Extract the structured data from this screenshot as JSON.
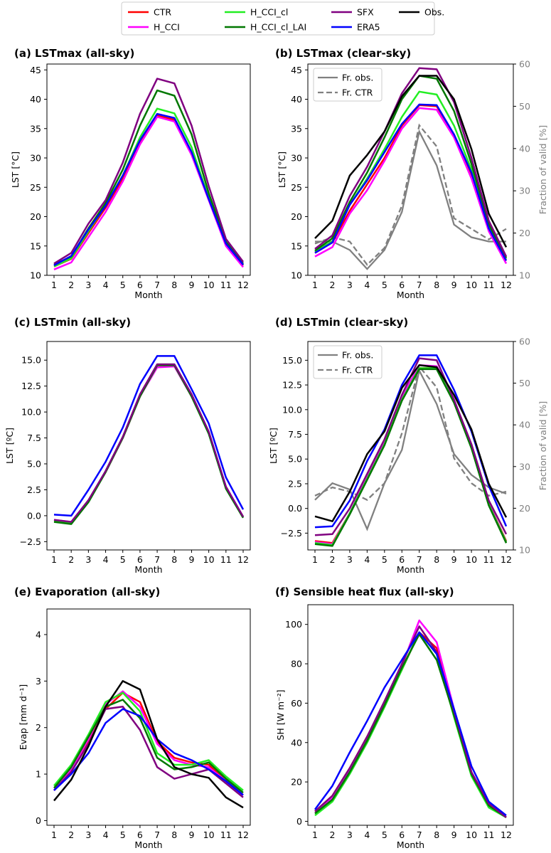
{
  "legend": {
    "entries": [
      {
        "label": "CTR",
        "color": "#ff0000"
      },
      {
        "label": "H_CCI",
        "color": "#ff00ff"
      },
      {
        "label": "H_CCI_cl",
        "color": "#22ee22"
      },
      {
        "label": "H_CCI_cl_LAI",
        "color": "#007700"
      },
      {
        "label": "SFX",
        "color": "#800080"
      },
      {
        "label": "ERA5",
        "color": "#0000ff"
      },
      {
        "label": "Obs.",
        "color": "#000000"
      }
    ]
  },
  "chart_data": [
    {
      "id": "a",
      "type": "line",
      "title": "(a) LSTmax (all-sky)",
      "xlabel": "Month",
      "ylabel": "LST [°C]",
      "categories": [
        "1",
        "2",
        "3",
        "4",
        "5",
        "6",
        "7",
        "8",
        "9",
        "10",
        "11",
        "12"
      ],
      "ylim": [
        10,
        46
      ],
      "yticks": [
        "10",
        "15",
        "20",
        "25",
        "30",
        "35",
        "40",
        "45"
      ],
      "series": [
        {
          "name": "CTR",
          "color": "#ff0000",
          "values": [
            11.5,
            12.8,
            17.2,
            21.5,
            26.5,
            32.5,
            37.2,
            36.5,
            31.0,
            23.0,
            15.3,
            11.7
          ]
        },
        {
          "name": "H_CCI",
          "color": "#ff00ff",
          "values": [
            11.0,
            12.2,
            16.5,
            20.8,
            26.0,
            32.3,
            37.0,
            36.2,
            30.5,
            22.8,
            15.0,
            11.4
          ]
        },
        {
          "name": "H_CCI_cl",
          "color": "#22ee22",
          "values": [
            11.5,
            12.9,
            17.5,
            21.9,
            27.0,
            33.5,
            38.4,
            37.6,
            31.8,
            23.2,
            15.5,
            11.8
          ]
        },
        {
          "name": "H_CCI_cl_LAI",
          "color": "#007700",
          "values": [
            11.8,
            13.2,
            18.0,
            22.3,
            28.0,
            35.5,
            41.5,
            40.6,
            34.0,
            24.0,
            15.7,
            12.0
          ]
        },
        {
          "name": "SFX",
          "color": "#800080",
          "values": [
            12.0,
            13.8,
            18.8,
            22.8,
            29.2,
            37.5,
            43.5,
            42.7,
            35.5,
            25.2,
            16.2,
            12.3
          ]
        },
        {
          "name": "ERA5",
          "color": "#0000ff",
          "values": [
            11.7,
            13.3,
            17.8,
            21.8,
            27.0,
            33.0,
            37.5,
            36.8,
            31.0,
            23.0,
            15.4,
            11.8
          ]
        }
      ]
    },
    {
      "id": "b",
      "type": "line",
      "title": "(b) LSTmax (clear-sky)",
      "xlabel": "Month",
      "ylabel": "LST [°C]",
      "right_ylabel": "Fraction of valid [%]",
      "categories": [
        "1",
        "2",
        "3",
        "4",
        "5",
        "6",
        "7",
        "8",
        "9",
        "10",
        "11",
        "12"
      ],
      "ylim": [
        10,
        46
      ],
      "yticks": [
        "10",
        "15",
        "20",
        "25",
        "30",
        "35",
        "40",
        "45"
      ],
      "right_ylim": [
        10,
        60
      ],
      "right_yticks": [
        "10",
        "20",
        "30",
        "40",
        "50",
        "60"
      ],
      "inner_legend": [
        "Fr. obs.",
        "Fr. CTR"
      ],
      "series": [
        {
          "name": "CTR",
          "color": "#ff0000",
          "values": [
            13.8,
            15.6,
            21.0,
            25.5,
            30.0,
            35.5,
            39.0,
            38.8,
            34.0,
            27.0,
            18.0,
            12.5
          ]
        },
        {
          "name": "H_CCI",
          "color": "#ff00ff",
          "values": [
            13.2,
            14.8,
            20.5,
            24.5,
            29.5,
            35.0,
            38.5,
            38.2,
            33.5,
            26.5,
            17.5,
            12.0
          ]
        },
        {
          "name": "H_CCI_cl",
          "color": "#22ee22",
          "values": [
            14.0,
            15.8,
            22.0,
            26.5,
            31.5,
            37.0,
            41.3,
            40.8,
            35.5,
            28.0,
            18.2,
            12.8
          ]
        },
        {
          "name": "H_CCI_cl_LAI",
          "color": "#007700",
          "values": [
            14.2,
            16.3,
            22.5,
            27.5,
            33.5,
            40.0,
            44.0,
            43.5,
            38.0,
            29.0,
            18.7,
            13.0
          ]
        },
        {
          "name": "SFX",
          "color": "#800080",
          "values": [
            14.5,
            16.8,
            23.5,
            28.5,
            34.5,
            41.0,
            45.3,
            45.1,
            39.5,
            30.0,
            19.3,
            13.2
          ]
        },
        {
          "name": "ERA5",
          "color": "#0000ff",
          "values": [
            13.8,
            15.6,
            22.0,
            26.2,
            31.0,
            35.8,
            39.1,
            39.0,
            34.0,
            27.5,
            18.0,
            12.5
          ]
        },
        {
          "name": "Obs.",
          "color": "#000000",
          "values": [
            16.3,
            19.3,
            27.0,
            30.5,
            34.5,
            40.5,
            44.0,
            44.0,
            40.0,
            31.5,
            20.5,
            14.8
          ]
        }
      ],
      "fraction_series": [
        {
          "name": "Fr. obs.",
          "color": "#808080",
          "dashed": false,
          "values": [
            18.0,
            18.0,
            16.0,
            11.5,
            16.0,
            25.0,
            44.0,
            36.0,
            22.0,
            19.0,
            18.0,
            18.0
          ]
        },
        {
          "name": "Fr. CTR",
          "color": "#808080",
          "dashed": true,
          "values": [
            17.5,
            19.0,
            18.0,
            12.5,
            16.5,
            26.5,
            45.5,
            40.5,
            23.5,
            21.0,
            18.5,
            21.0
          ]
        }
      ]
    },
    {
      "id": "c",
      "type": "line",
      "title": "(c) LSTmin (all-sky)",
      "xlabel": "Month",
      "ylabel": "LST [ºC]",
      "categories": [
        "1",
        "2",
        "3",
        "4",
        "5",
        "6",
        "7",
        "8",
        "9",
        "10",
        "11",
        "12"
      ],
      "ylim": [
        -3.3,
        16.8
      ],
      "yticks": [
        "−2.5",
        "0.0",
        "2.5",
        "5.0",
        "7.5",
        "10.0",
        "12.5",
        "15.0"
      ],
      "series": [
        {
          "name": "CTR",
          "color": "#ff0000",
          "values": [
            -0.5,
            -0.7,
            1.4,
            4.2,
            7.5,
            11.5,
            14.5,
            14.5,
            11.5,
            8.0,
            2.7,
            -0.1
          ]
        },
        {
          "name": "H_CCI",
          "color": "#ff00ff",
          "values": [
            -0.4,
            -0.6,
            1.4,
            4.2,
            7.5,
            11.5,
            14.3,
            14.4,
            11.5,
            8.0,
            2.8,
            -0.1
          ]
        },
        {
          "name": "H_CCI_cl",
          "color": "#22ee22",
          "values": [
            -0.5,
            -0.7,
            1.4,
            4.3,
            7.6,
            11.6,
            14.6,
            14.6,
            11.6,
            8.0,
            2.7,
            -0.1
          ]
        },
        {
          "name": "H_CCI_cl_LAI",
          "color": "#007700",
          "values": [
            -0.6,
            -0.8,
            1.3,
            4.2,
            7.5,
            11.5,
            14.5,
            14.5,
            11.5,
            7.9,
            2.6,
            -0.2
          ]
        },
        {
          "name": "SFX",
          "color": "#800080",
          "values": [
            -0.4,
            -0.6,
            1.5,
            4.3,
            7.6,
            11.7,
            14.6,
            14.6,
            11.7,
            8.1,
            2.8,
            -0.1
          ]
        },
        {
          "name": "ERA5",
          "color": "#0000ff",
          "values": [
            0.1,
            0.0,
            2.5,
            5.2,
            8.5,
            12.7,
            15.4,
            15.4,
            12.2,
            8.9,
            3.7,
            0.6
          ]
        }
      ]
    },
    {
      "id": "d",
      "type": "line",
      "title": "(d) LSTmin (clear-sky)",
      "xlabel": "Month",
      "ylabel": "LST [ºC]",
      "right_ylabel": "Fraction of valid [%]",
      "categories": [
        "1",
        "2",
        "3",
        "4",
        "5",
        "6",
        "7",
        "8",
        "9",
        "10",
        "11",
        "12"
      ],
      "ylim": [
        -4.2,
        16.9
      ],
      "yticks": [
        "−2.5",
        "0.0",
        "2.5",
        "5.0",
        "7.5",
        "10.0",
        "12.5",
        "15.0"
      ],
      "right_ylim": [
        10,
        60
      ],
      "right_yticks": [
        "10",
        "20",
        "30",
        "40",
        "50",
        "60"
      ],
      "inner_legend": [
        "Fr. obs.",
        "Fr. CTR"
      ],
      "series": [
        {
          "name": "CTR",
          "color": "#ff0000",
          "values": [
            -3.3,
            -3.5,
            -0.5,
            3.0,
            6.5,
            11.0,
            14.2,
            14.2,
            10.8,
            6.2,
            0.5,
            -3.3
          ]
        },
        {
          "name": "H_CCI",
          "color": "#ff00ff",
          "values": [
            -3.4,
            -3.6,
            -0.5,
            3.2,
            6.7,
            11.3,
            14.5,
            14.4,
            11.0,
            6.4,
            0.5,
            -3.4
          ]
        },
        {
          "name": "H_CCI_cl",
          "color": "#22ee22",
          "values": [
            -3.5,
            -3.7,
            -0.5,
            3.0,
            6.5,
            11.0,
            14.2,
            14.2,
            10.8,
            6.2,
            0.4,
            -3.4
          ]
        },
        {
          "name": "H_CCI_cl_LAI",
          "color": "#007700",
          "values": [
            -3.6,
            -3.8,
            -0.6,
            2.9,
            6.4,
            10.9,
            14.1,
            14.1,
            10.7,
            6.1,
            0.3,
            -3.5
          ]
        },
        {
          "name": "SFX",
          "color": "#800080",
          "values": [
            -2.7,
            -2.6,
            0.0,
            3.5,
            7.0,
            11.5,
            15.2,
            15.0,
            11.0,
            6.5,
            0.8,
            -2.6
          ]
        },
        {
          "name": "ERA5",
          "color": "#0000ff",
          "values": [
            -1.9,
            -1.8,
            0.8,
            4.8,
            8.0,
            12.5,
            15.5,
            15.5,
            12.0,
            7.8,
            2.3,
            -1.8
          ]
        },
        {
          "name": "Obs.",
          "color": "#000000",
          "values": [
            -0.8,
            -1.3,
            1.7,
            5.5,
            7.8,
            12.2,
            14.5,
            14.3,
            11.5,
            8.0,
            2.5,
            -0.9
          ]
        }
      ],
      "fraction_series": [
        {
          "name": "Fr. obs.",
          "color": "#808080",
          "dashed": false,
          "values": [
            22.0,
            26.0,
            24.5,
            15.0,
            26.0,
            34.0,
            53.0,
            45.0,
            33.0,
            28.0,
            25.0,
            23.5
          ]
        },
        {
          "name": "Fr. CTR",
          "color": "#808080",
          "dashed": true,
          "values": [
            23.0,
            25.0,
            24.0,
            22.0,
            26.0,
            38.0,
            54.0,
            49.0,
            32.0,
            26.0,
            23.0,
            24.0
          ]
        }
      ]
    },
    {
      "id": "e",
      "type": "line",
      "title": "(e) Evaporation (all-sky)",
      "xlabel": "Month",
      "ylabel": "Evap [mm d⁻¹]",
      "categories": [
        "1",
        "2",
        "3",
        "4",
        "5",
        "6",
        "7",
        "8",
        "9",
        "10",
        "11",
        "12"
      ],
      "ylim": [
        -0.1,
        4.55
      ],
      "yticks": [
        "0",
        "1",
        "2",
        "3",
        "4"
      ],
      "series": [
        {
          "name": "CTR",
          "color": "#ff0000",
          "values": [
            0.65,
            1.1,
            1.7,
            2.4,
            2.75,
            2.55,
            1.7,
            1.35,
            1.25,
            1.2,
            0.85,
            0.55
          ]
        },
        {
          "name": "H_CCI",
          "color": "#ff00ff",
          "values": [
            0.65,
            1.1,
            1.75,
            2.5,
            2.78,
            2.45,
            1.65,
            1.3,
            1.2,
            1.15,
            0.85,
            0.55
          ]
        },
        {
          "name": "H_CCI_cl",
          "color": "#22ee22",
          "values": [
            0.75,
            1.2,
            1.85,
            2.55,
            2.75,
            2.35,
            1.45,
            1.2,
            1.2,
            1.3,
            0.95,
            0.65
          ]
        },
        {
          "name": "H_CCI_cl_LAI",
          "color": "#007700",
          "values": [
            0.7,
            1.15,
            1.8,
            2.45,
            2.6,
            2.2,
            1.35,
            1.1,
            1.15,
            1.25,
            0.9,
            0.6
          ]
        },
        {
          "name": "SFX",
          "color": "#800080",
          "values": [
            0.65,
            1.05,
            1.65,
            2.4,
            2.45,
            1.95,
            1.15,
            0.9,
            1.0,
            1.1,
            0.8,
            0.5
          ]
        },
        {
          "name": "ERA5",
          "color": "#0000ff",
          "values": [
            0.65,
            1.0,
            1.45,
            2.1,
            2.4,
            2.25,
            1.75,
            1.45,
            1.3,
            1.1,
            0.85,
            0.55
          ]
        },
        {
          "name": "Obs.",
          "color": "#000000",
          "values": [
            0.43,
            0.88,
            1.6,
            2.45,
            3.0,
            2.82,
            1.75,
            1.15,
            1.0,
            0.92,
            0.5,
            0.28
          ]
        }
      ]
    },
    {
      "id": "f",
      "type": "line",
      "title": "(f) Sensible heat flux (all-sky)",
      "xlabel": "Month",
      "ylabel": "SH [W m⁻²]",
      "categories": [
        "1",
        "2",
        "3",
        "4",
        "5",
        "6",
        "7",
        "8",
        "9",
        "10",
        "11",
        "12"
      ],
      "ylim": [
        -2,
        110
      ],
      "yticks": [
        "0",
        "20",
        "40",
        "60",
        "80",
        "100"
      ],
      "series": [
        {
          "name": "CTR",
          "color": "#ff0000",
          "values": [
            5,
            13,
            27,
            43,
            60,
            77,
            96,
            88,
            55,
            25,
            9,
            2
          ]
        },
        {
          "name": "H_CCI",
          "color": "#ff00ff",
          "values": [
            4,
            12,
            26,
            42,
            60,
            79,
            102,
            91,
            57,
            25,
            9,
            2
          ]
        },
        {
          "name": "H_CCI_cl",
          "color": "#22ee22",
          "values": [
            3,
            10,
            24,
            40,
            58,
            77,
            96,
            85,
            53,
            23,
            7,
            2
          ]
        },
        {
          "name": "H_CCI_cl_LAI",
          "color": "#007700",
          "values": [
            4,
            11,
            25,
            41,
            59,
            78,
            95,
            82,
            54,
            24,
            8,
            2
          ]
        },
        {
          "name": "SFX",
          "color": "#800080",
          "values": [
            5,
            13,
            27,
            43,
            61,
            80,
            99,
            86,
            56,
            25,
            9,
            2
          ]
        },
        {
          "name": "ERA5",
          "color": "#0000ff",
          "values": [
            6,
            18,
            35,
            51,
            68,
            82,
            96,
            85,
            57,
            28,
            10,
            3
          ]
        }
      ]
    }
  ]
}
